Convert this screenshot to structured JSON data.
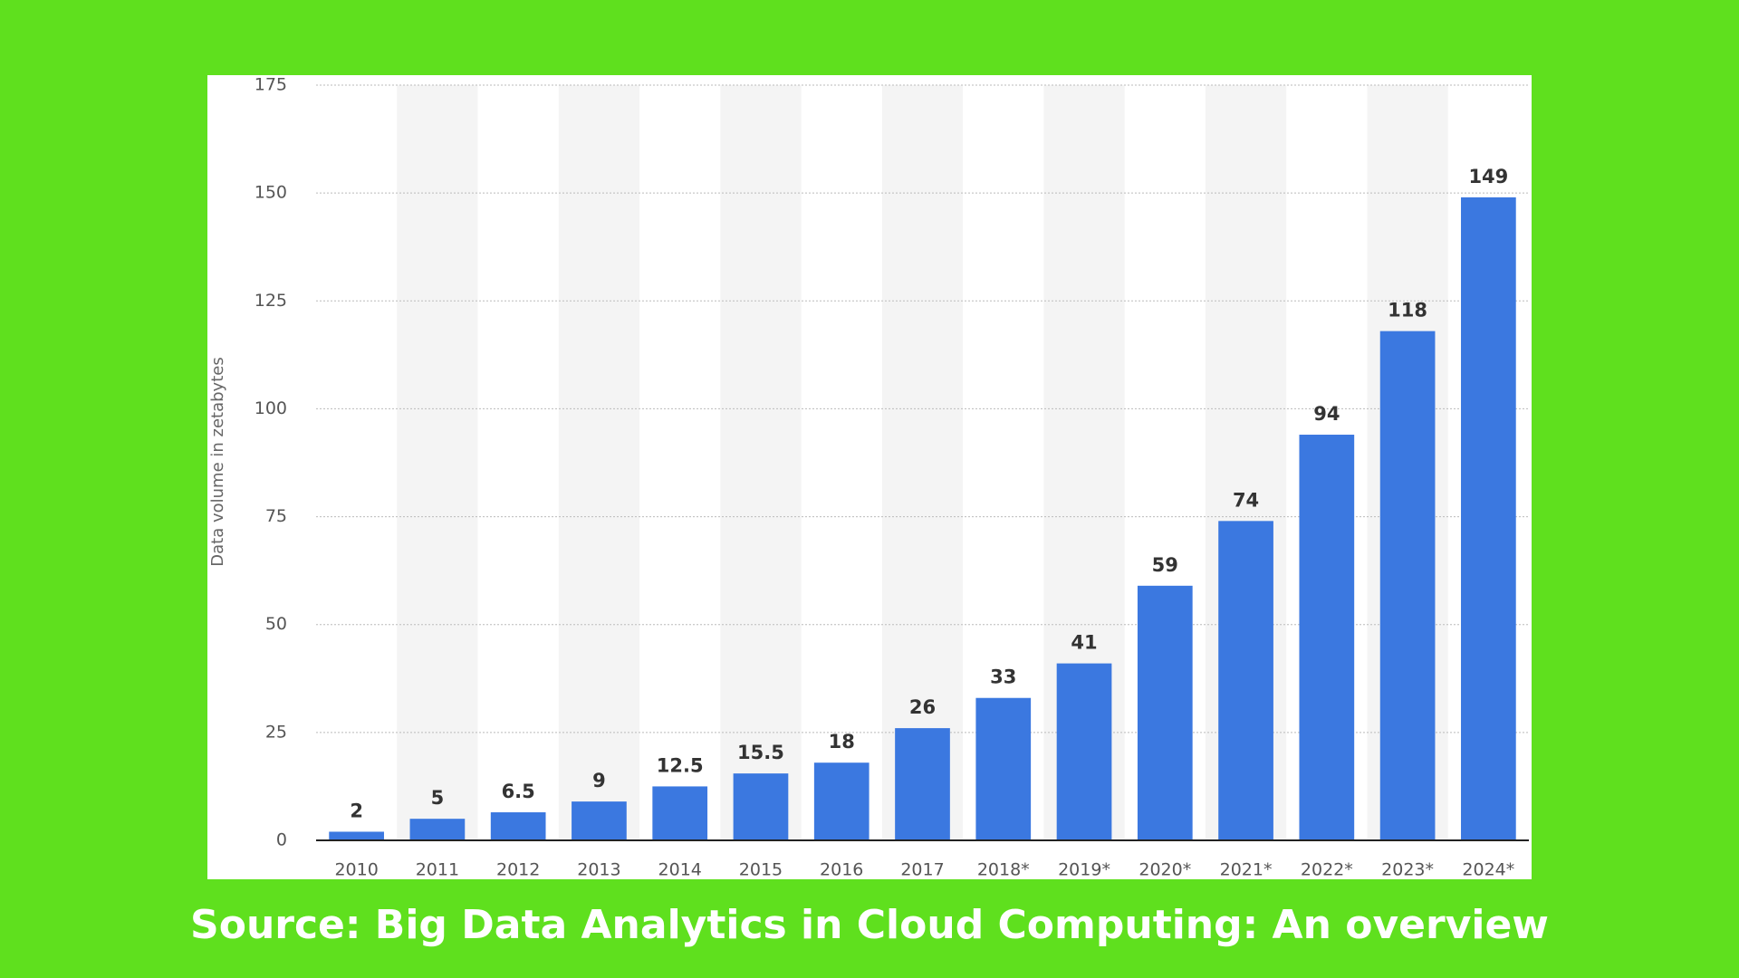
{
  "chart_data": {
    "type": "bar",
    "y_label": "Data volume in zetabytes",
    "categories": [
      "2010",
      "2011",
      "2012",
      "2013",
      "2014",
      "2015",
      "2016",
      "2017",
      "2018*",
      "2019*",
      "2020*",
      "2021*",
      "2022*",
      "2023*",
      "2024*"
    ],
    "values": [
      2,
      5,
      6.5,
      9,
      12.5,
      15.5,
      18,
      26,
      33,
      41,
      59,
      74,
      94,
      118,
      149
    ],
    "color": "#3b78e0",
    "ylim": [
      0,
      175
    ],
    "yticks": [
      0,
      25,
      50,
      75,
      100,
      125,
      150,
      175
    ],
    "grid": true
  },
  "caption": "Source: Big Data Analytics in Cloud Computing: An overview"
}
